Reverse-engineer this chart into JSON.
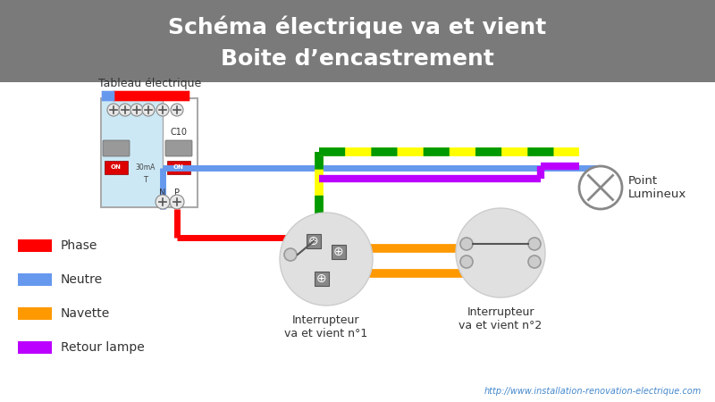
{
  "title_line1": "Schéma électrique va et vient",
  "title_line2": "Boite d’encastrement",
  "title_bg": "#7a7a7a",
  "title_fg": "#ffffff",
  "bg_color": "#ffffff",
  "phase_color": "#ff0000",
  "neutre_color": "#6699ee",
  "navette_dashed_yellow": "#ffff00",
  "navette_dashed_green": "#009900",
  "navette_orange": "#ff9900",
  "retour_color": "#bb00ff",
  "tableau_label": "Tableau électrique",
  "interrupteur1_label": "Interrupteur\nva et vient n°1",
  "interrupteur2_label": "Interrupteur\nva et vient n°2",
  "point_label": "Point\nLumineux",
  "legend_items": [
    {
      "label": "Phase",
      "color": "#ff0000"
    },
    {
      "label": "Neutre",
      "color": "#6699ee"
    },
    {
      "label": "Navette",
      "color": "#ff9900"
    },
    {
      "label": "Retour lampe",
      "color": "#bb00ff"
    }
  ],
  "website": "http://www.installation-renovation-electrique.com"
}
